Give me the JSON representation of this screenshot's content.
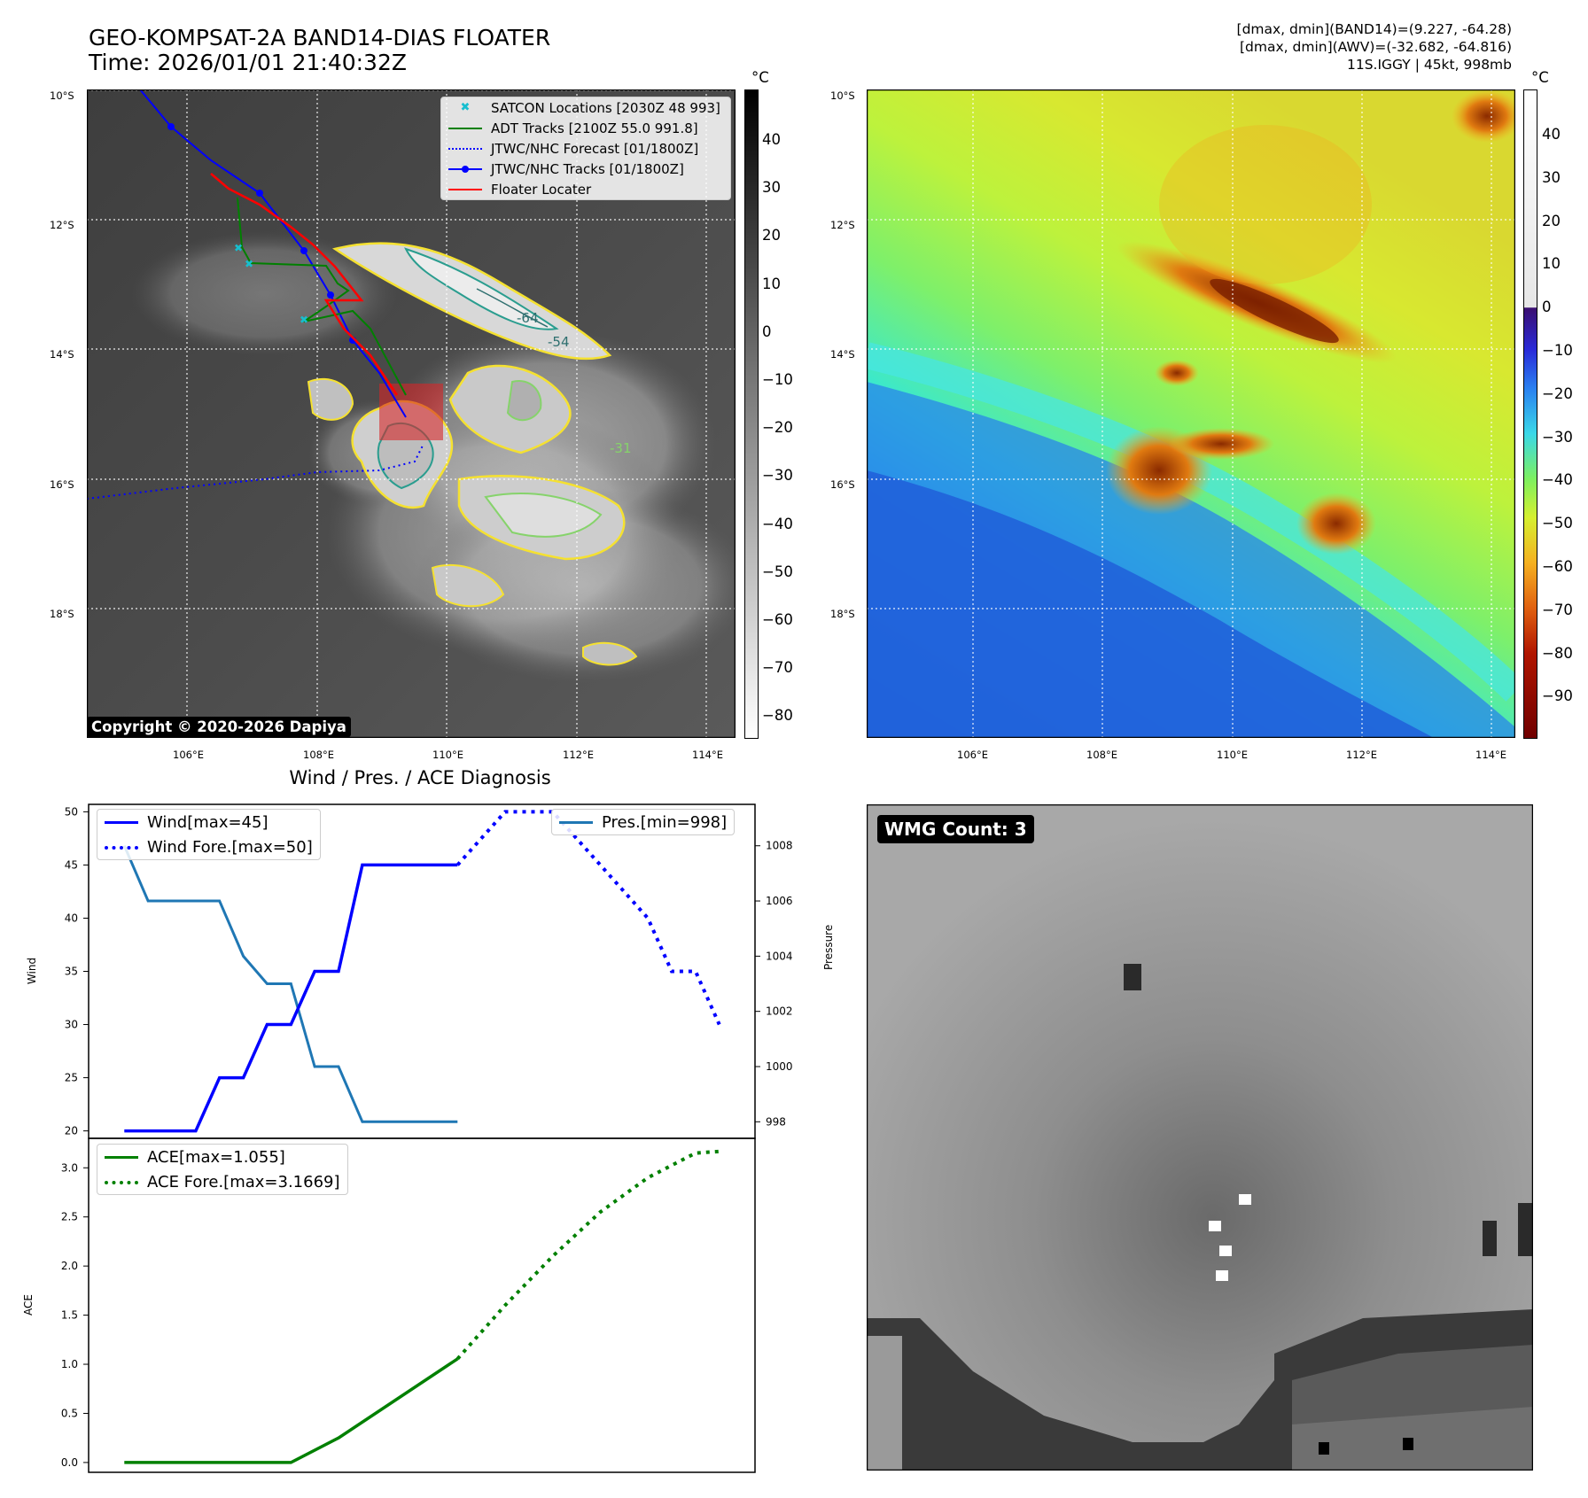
{
  "header": {
    "title_line1": "GEO-KOMPSAT-2A BAND14-DIAS FLOATER",
    "title_line2": "Time: 2026/01/01 21:40:32Z",
    "meta_line1": "[dmax, dmin](BAND14)=(9.227, -64.28)",
    "meta_line2": "[dmax, dmin](AWV)=(-32.682, -64.816)",
    "meta_line3": "11S.IGGY | 45kt, 998mb"
  },
  "map": {
    "lat_labels": [
      "10°S",
      "12°S",
      "14°S",
      "16°S",
      "18°S"
    ],
    "lon_labels": [
      "106°E",
      "108°E",
      "110°E",
      "112°E",
      "114°E"
    ],
    "contour_labels": [
      "-64",
      "-54",
      "-31"
    ],
    "copyright": "Copyright © 2020-2026 Dapiya",
    "legend": [
      {
        "label": "SATCON Locations [2030Z 48 993]",
        "color": "#17becf"
      },
      {
        "label": "ADT Tracks [2100Z 55.0 991.8]",
        "color": "#008000"
      },
      {
        "label": "JTWC/NHC Forecast [01/1800Z]",
        "color": "#0000ff"
      },
      {
        "label": "JTWC/NHC Tracks [01/1800Z]",
        "color": "#0000ff"
      },
      {
        "label": "Floater Locater",
        "color": "#ff0000"
      }
    ],
    "floater_color": "#d62728"
  },
  "colorbar_gray": {
    "unit": "°C",
    "ticks": [
      "40",
      "30",
      "20",
      "10",
      "0",
      "−10",
      "−20",
      "−30",
      "−40",
      "−50",
      "−60",
      "−70",
      "−80"
    ]
  },
  "colorbar_color": {
    "unit": "°C",
    "ticks": [
      "40",
      "30",
      "20",
      "10",
      "0",
      "−10",
      "−20",
      "−30",
      "−40",
      "−50",
      "−60",
      "−70",
      "−80",
      "−90"
    ]
  },
  "wmg": {
    "label": "WMG Count: 3"
  },
  "chart_data": [
    {
      "type": "line",
      "title": "Wind / Pres. / ACE Diagnosis",
      "xlabel": "",
      "ylabel": "Wind",
      "ylabel_right": "Pressure",
      "x": [
        0,
        1,
        2,
        3,
        4,
        5,
        6,
        7,
        8,
        9,
        10,
        11,
        12,
        13,
        14,
        15,
        16,
        17,
        18,
        19,
        20,
        21,
        22,
        23,
        24,
        25
      ],
      "ylim": [
        19.3,
        50.7
      ],
      "y2lim": [
        997.4,
        1009.5
      ],
      "yticks": [
        "20",
        "25",
        "30",
        "35",
        "40",
        "45",
        "50"
      ],
      "y2ticks": [
        "998",
        "1000",
        "1002",
        "1004",
        "1006",
        "1008"
      ],
      "series": [
        {
          "name": "Wind[max=45]",
          "axis": "left",
          "style": "solid",
          "color": "#0000ff",
          "x": [
            0,
            3,
            4,
            5,
            6,
            7,
            8,
            9,
            10,
            11,
            12,
            13,
            14
          ],
          "values": [
            20,
            20,
            25,
            25,
            30,
            30,
            35,
            35,
            45,
            45,
            45,
            45,
            45
          ]
        },
        {
          "name": "Wind Fore.[max=50]",
          "axis": "left",
          "style": "dotted",
          "color": "#0000ff",
          "x": [
            14,
            16,
            18,
            20,
            22,
            23,
            24,
            25
          ],
          "values": [
            45,
            50,
            50,
            45,
            40,
            35,
            35,
            30
          ]
        },
        {
          "name": "Pres.[min=998]",
          "axis": "right",
          "style": "solid",
          "color": "#1f77b4",
          "x": [
            0,
            1,
            2,
            3,
            4,
            5,
            6,
            7,
            8,
            9,
            10,
            11,
            12,
            13,
            14
          ],
          "values": [
            1008,
            1006,
            1006,
            1006,
            1006,
            1004,
            1003,
            1003,
            1000,
            1000,
            998,
            998,
            998,
            998,
            998
          ]
        }
      ]
    },
    {
      "type": "line",
      "title": "",
      "xlabel": "",
      "ylabel": "ACE",
      "x": [
        0,
        1,
        2,
        3,
        4,
        5,
        6,
        7,
        8,
        9,
        10,
        11,
        12,
        13,
        14,
        15,
        16,
        17,
        18,
        19,
        20,
        21,
        22,
        23,
        24,
        25
      ],
      "ylim": [
        -0.1,
        3.3
      ],
      "yticks": [
        "0.0",
        "0.5",
        "1.0",
        "1.5",
        "2.0",
        "2.5",
        "3.0"
      ],
      "series": [
        {
          "name": "ACE[max=1.055]",
          "style": "solid",
          "color": "#008000",
          "x": [
            0,
            7,
            9,
            14
          ],
          "values": [
            0,
            0,
            0.25,
            1.055
          ]
        },
        {
          "name": "ACE Fore.[max=3.1669]",
          "style": "dotted",
          "color": "#008000",
          "x": [
            14,
            16,
            18,
            20,
            22,
            24,
            25
          ],
          "values": [
            1.055,
            1.6,
            2.1,
            2.55,
            2.9,
            3.15,
            3.1669
          ]
        }
      ]
    }
  ]
}
